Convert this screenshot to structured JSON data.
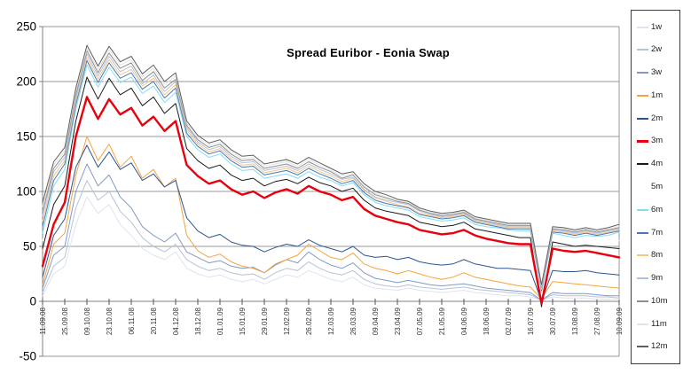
{
  "chart_data": {
    "type": "line",
    "title": "Spread Euribor - Eonia Swap",
    "xlabel": "",
    "ylabel": "",
    "ylim": [
      -50,
      250
    ],
    "y_ticks": [
      250,
      200,
      150,
      100,
      50,
      0,
      -50
    ],
    "grid": true,
    "legend_position": "right",
    "x_axis_crosses_at": 0,
    "x_tick_labels": [
      "11.09.08",
      "25.09.08",
      "09.10.08",
      "23.10.08",
      "06.11.08",
      "20.11.08",
      "04.12.08",
      "18.12.08",
      "01.01.09",
      "15.01.09",
      "29.01.09",
      "12.02.09",
      "26.02.09",
      "12.03.09",
      "26.03.09",
      "09.04.09",
      "23.04.09",
      "07.05.09",
      "21.05.09",
      "04.06.09",
      "18.06.09",
      "02.07.09",
      "16.07.09",
      "30.07.09",
      "13.08.09",
      "27.08.09",
      "10.09.09"
    ],
    "x_sampling": "weekly, 53 points from 11.09.08 to 10.09.09; tick labels fall on even indices",
    "series": [
      {
        "name": "1w",
        "color": "#dfe3ed",
        "width": 1,
        "z": 0,
        "values": [
          5,
          25,
          32,
          70,
          95,
          80,
          88,
          70,
          60,
          48,
          42,
          38,
          45,
          30,
          25,
          22,
          24,
          20,
          18,
          20,
          16,
          20,
          24,
          22,
          28,
          24,
          20,
          18,
          22,
          15,
          12,
          11,
          10,
          12,
          10,
          9,
          8,
          9,
          10,
          8,
          7,
          6,
          5,
          5,
          4,
          1,
          4,
          3,
          3,
          3,
          2,
          2,
          2
        ]
      },
      {
        "name": "2w",
        "color": "#b5c2d8",
        "width": 1,
        "z": 0,
        "values": [
          8,
          32,
          40,
          85,
          110,
          92,
          100,
          82,
          72,
          58,
          50,
          45,
          52,
          38,
          32,
          28,
          30,
          26,
          24,
          25,
          20,
          26,
          30,
          28,
          36,
          30,
          26,
          24,
          28,
          20,
          16,
          14,
          13,
          15,
          13,
          12,
          11,
          12,
          13,
          11,
          10,
          9,
          8,
          7,
          6,
          1,
          6,
          5,
          5,
          5,
          4,
          4,
          3
        ]
      },
      {
        "name": "3w",
        "color": "#7f9ac6",
        "width": 1,
        "z": 0,
        "values": [
          12,
          42,
          50,
          100,
          125,
          105,
          115,
          95,
          85,
          68,
          60,
          54,
          62,
          45,
          40,
          35,
          37,
          32,
          30,
          31,
          26,
          33,
          38,
          35,
          45,
          38,
          33,
          30,
          35,
          26,
          21,
          19,
          17,
          19,
          17,
          15,
          14,
          15,
          16,
          14,
          12,
          11,
          10,
          9,
          8,
          1,
          8,
          7,
          7,
          7,
          6,
          5,
          5
        ]
      },
      {
        "name": "1m",
        "color": "#f5a33c",
        "width": 1,
        "z": 0,
        "values": [
          15,
          52,
          62,
          115,
          150,
          128,
          143,
          122,
          132,
          112,
          120,
          104,
          112,
          60,
          46,
          40,
          43,
          36,
          32,
          30,
          26,
          34,
          38,
          42,
          52,
          46,
          40,
          38,
          44,
          34,
          30,
          28,
          25,
          28,
          25,
          22,
          20,
          22,
          26,
          22,
          20,
          18,
          16,
          14,
          13,
          2,
          18,
          17,
          16,
          15,
          14,
          13,
          12
        ]
      },
      {
        "name": "2m",
        "color": "#2a5593",
        "width": 1,
        "z": 0,
        "values": [
          22,
          60,
          75,
          122,
          142,
          122,
          136,
          120,
          126,
          110,
          116,
          104,
          110,
          76,
          64,
          58,
          61,
          54,
          51,
          50,
          45,
          49,
          52,
          50,
          56,
          51,
          48,
          45,
          50,
          42,
          40,
          41,
          38,
          40,
          36,
          34,
          33,
          34,
          38,
          34,
          32,
          30,
          30,
          29,
          28,
          0,
          28,
          27,
          27,
          28,
          26,
          25,
          24
        ]
      },
      {
        "name": "3m",
        "color": "#e8000d",
        "width": 2.4,
        "z": 2,
        "values": [
          32,
          70,
          90,
          150,
          186,
          166,
          184,
          170,
          176,
          160,
          168,
          155,
          164,
          124,
          114,
          107,
          110,
          102,
          97,
          100,
          94,
          99,
          102,
          98,
          105,
          100,
          97,
          92,
          95,
          84,
          78,
          75,
          72,
          70,
          65,
          63,
          61,
          62,
          65,
          60,
          57,
          55,
          53,
          52,
          52,
          -2,
          48,
          46,
          45,
          46,
          44,
          42,
          40
        ]
      },
      {
        "name": "4m",
        "color": "#1a1a1a",
        "width": 1,
        "z": 1,
        "values": [
          48,
          88,
          105,
          164,
          204,
          184,
          203,
          188,
          194,
          178,
          186,
          171,
          180,
          139,
          128,
          121,
          124,
          115,
          110,
          112,
          105,
          109,
          111,
          107,
          113,
          108,
          105,
          100,
          103,
          92,
          85,
          82,
          80,
          78,
          72,
          70,
          68,
          69,
          72,
          66,
          64,
          62,
          60,
          58,
          58,
          -5,
          54,
          52,
          50,
          51,
          50,
          49,
          48
        ]
      },
      {
        "name": "5m",
        "color": "#ffffff",
        "width": 1,
        "z": 0,
        "values": [
          55,
          97,
          112,
          170,
          210,
          190,
          208,
          194,
          199,
          184,
          191,
          176,
          185,
          145,
          133,
          126,
          129,
          120,
          115,
          116,
          109,
          112,
          114,
          110,
          116,
          111,
          108,
          103,
          106,
          95,
          88,
          85,
          83,
          81,
          75,
          73,
          71,
          72,
          74,
          68,
          66,
          65,
          63,
          61,
          61,
          2,
          58,
          56,
          54,
          56,
          55,
          55,
          55
        ]
      },
      {
        "name": "6m",
        "color": "#84dcf2",
        "width": 1,
        "z": 0,
        "values": [
          62,
          105,
          120,
          175,
          215,
          195,
          213,
          199,
          204,
          189,
          196,
          181,
          190,
          150,
          138,
          131,
          134,
          125,
          119,
          120,
          112,
          114,
          116,
          112,
          118,
          113,
          110,
          105,
          108,
          97,
          90,
          87,
          85,
          83,
          77,
          75,
          73,
          74,
          76,
          70,
          68,
          67,
          65,
          64,
          64,
          8,
          62,
          60,
          58,
          60,
          59,
          60,
          63
        ]
      },
      {
        "name": "7m",
        "color": "#4a77b9",
        "width": 1,
        "z": 0,
        "values": [
          68,
          110,
          125,
          179,
          219,
          199,
          217,
          203,
          208,
          193,
          200,
          185,
          194,
          153,
          141,
          134,
          137,
          128,
          122,
          123,
          115,
          117,
          119,
          115,
          121,
          116,
          112,
          107,
          110,
          99,
          92,
          89,
          87,
          85,
          79,
          77,
          75,
          76,
          78,
          72,
          70,
          68,
          66,
          66,
          66,
          10,
          63,
          62,
          60,
          62,
          60,
          62,
          64
        ]
      },
      {
        "name": "8m",
        "color": "#f7c67f",
        "width": 1,
        "z": 0,
        "values": [
          73,
          114,
          128,
          182,
          222,
          202,
          220,
          206,
          211,
          196,
          203,
          188,
          197,
          156,
          143,
          136,
          139,
          130,
          124,
          125,
          117,
          119,
          121,
          117,
          123,
          118,
          114,
          109,
          112,
          101,
          94,
          91,
          88,
          86,
          80,
          78,
          76,
          77,
          79,
          73,
          71,
          69,
          67,
          67,
          67,
          11,
          64,
          63,
          61,
          63,
          61,
          63,
          65
        ]
      },
      {
        "name": "9m",
        "color": "#b1c0dd",
        "width": 1,
        "z": 0,
        "values": [
          78,
          118,
          131,
          185,
          225,
          205,
          223,
          209,
          214,
          198,
          206,
          191,
          200,
          158,
          145,
          138,
          141,
          132,
          126,
          127,
          119,
          121,
          123,
          119,
          125,
          120,
          116,
          111,
          113,
          102,
          95,
          92,
          90,
          88,
          82,
          79,
          77,
          78,
          80,
          74,
          72,
          70,
          68,
          68,
          68,
          12,
          65,
          64,
          62,
          64,
          62,
          64,
          66
        ]
      },
      {
        "name": "10m",
        "color": "#8e8e8e",
        "width": 1,
        "z": 0,
        "values": [
          82,
          121,
          134,
          188,
          228,
          208,
          226,
          212,
          217,
          201,
          209,
          194,
          202,
          160,
          147,
          140,
          143,
          134,
          128,
          129,
          121,
          123,
          125,
          121,
          127,
          122,
          118,
          112,
          115,
          104,
          97,
          94,
          91,
          89,
          83,
          80,
          78,
          79,
          81,
          75,
          73,
          71,
          69,
          69,
          69,
          13,
          66,
          65,
          63,
          65,
          63,
          65,
          67
        ]
      },
      {
        "name": "11m",
        "color": "#e4e4e4",
        "width": 1,
        "z": 0,
        "values": [
          86,
          124,
          137,
          191,
          230,
          211,
          229,
          215,
          220,
          204,
          212,
          197,
          205,
          162,
          149,
          142,
          145,
          136,
          130,
          131,
          123,
          125,
          127,
          123,
          129,
          124,
          119,
          114,
          116,
          105,
          98,
          95,
          92,
          90,
          84,
          81,
          79,
          80,
          82,
          76,
          74,
          72,
          70,
          70,
          70,
          14,
          67,
          66,
          64,
          66,
          64,
          66,
          68
        ]
      },
      {
        "name": "12m",
        "color": "#5e5e5e",
        "width": 1,
        "z": 0,
        "values": [
          90,
          127,
          140,
          194,
          233,
          214,
          232,
          218,
          223,
          207,
          215,
          200,
          208,
          164,
          151,
          144,
          147,
          138,
          132,
          133,
          125,
          127,
          129,
          125,
          131,
          126,
          121,
          116,
          118,
          107,
          100,
          97,
          93,
          91,
          85,
          82,
          80,
          81,
          83,
          77,
          75,
          73,
          71,
          71,
          71,
          15,
          68,
          67,
          65,
          67,
          65,
          67,
          70
        ]
      }
    ],
    "colors": {
      "gridline": "#9a9a9a",
      "axis": "#808080",
      "tick": "#555555",
      "x_label": "#333333",
      "y_label": "#000000",
      "legend_border": "#3c3c3c",
      "background": "#ffffff"
    }
  }
}
